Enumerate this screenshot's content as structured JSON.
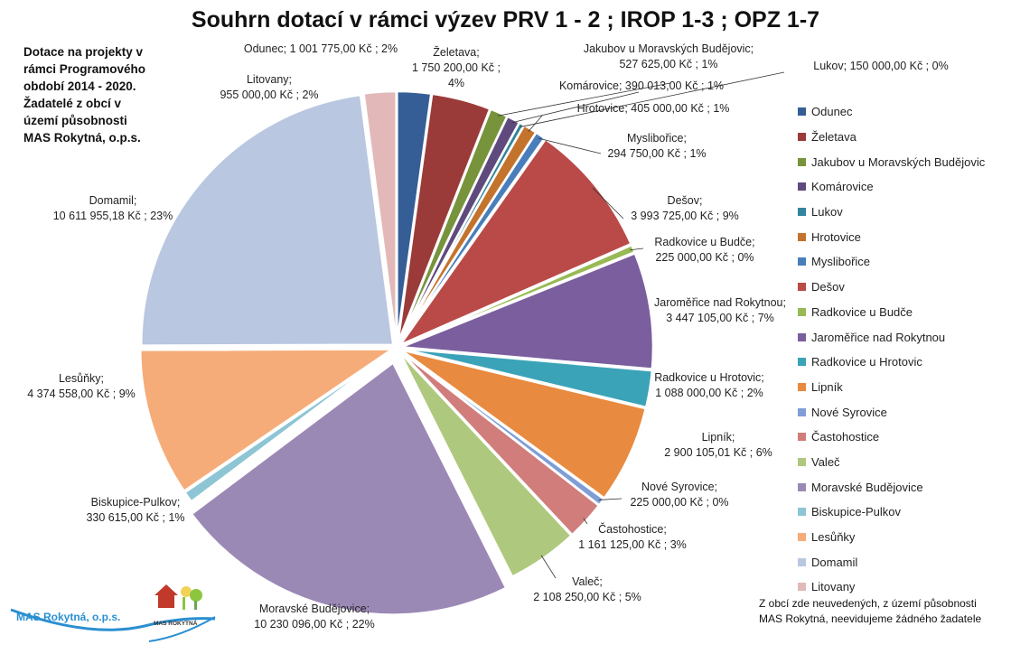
{
  "chart_data": {
    "type": "pie",
    "title": "Souhrn dotací v rámci výzev PRV 1 - 2 ; IROP 1-3 ; OPZ 1-7",
    "slices": [
      {
        "name": "Odunec",
        "value": 1001775.0,
        "label": "Odunec;  1 001 775,00 Kč ; 2%",
        "color": "#355e96"
      },
      {
        "name": "Želetava",
        "value": 1750200.0,
        "label": "Želetava;\n1 750 200,00 Kč ;\n4%",
        "color": "#9b3b39"
      },
      {
        "name": "Jakubov u Moravských Budějovic",
        "value": 527625.0,
        "label": "Jakubov u Moravských Budějovic;\n527 625,00 Kč ; 1%",
        "color": "#77933c"
      },
      {
        "name": "Komárovice",
        "value": 390013.0,
        "label": "Komárovice;  390 013,00 Kč ; 1%",
        "color": "#5f4a7e"
      },
      {
        "name": "Lukov",
        "value": 150000.0,
        "label": "Lukov;  150 000,00 Kč ; 0%",
        "color": "#31859c"
      },
      {
        "name": "Hrotovice",
        "value": 405000.0,
        "label": "Hrotovice;  405 000,00 Kč ; 1%",
        "color": "#c4732c"
      },
      {
        "name": "Myslibořice",
        "value": 294750.0,
        "label": "Myslibořice;\n294 750,00 Kč ;  1%",
        "color": "#4a7ebb"
      },
      {
        "name": "Dešov",
        "value": 3993725.0,
        "label": "Dešov;\n3 993 725,00 Kč ; 9%",
        "color": "#b94a48"
      },
      {
        "name": "Radkovice u Budče",
        "value": 225000.0,
        "label": "Radkovice u Budče;\n225 000,00 Kč ; 0%",
        "color": "#98b954"
      },
      {
        "name": "Jaroměřice nad Rokytnou",
        "value": 3447105.0,
        "label": "Jaroměřice nad Rokytnou;\n3 447 105,00 Kč ; 7%",
        "color": "#7b5e9e"
      },
      {
        "name": "Radkovice u Hrotovic",
        "value": 1088000.0,
        "label": "Radkovice u Hrotovic;\n1 088 000,00 Kč ; 2%",
        "color": "#3ba3b8"
      },
      {
        "name": "Lipník",
        "value": 2900105.01,
        "label": "Lipník;\n2 900 105,01 Kč ; 6%",
        "color": "#e88a3f"
      },
      {
        "name": "Nové Syrovice",
        "value": 225000.0,
        "label": "Nové Syrovice;\n225 000,00 Kč ; 0%",
        "color": "#7f9ed6"
      },
      {
        "name": "Častohostice",
        "value": 1161125.0,
        "label": "Častohostice;\n1 161 125,00 Kč ; 3%",
        "color": "#d07d7c"
      },
      {
        "name": "Valeč",
        "value": 2108250.0,
        "label": "Valeč;\n2 108 250,00 Kč ; 5%",
        "color": "#aec97d"
      },
      {
        "name": "Moravské Budějovice",
        "value": 10230096.0,
        "label": "Moravské Budějovice;\n10 230 096,00 Kč ; 22%",
        "color": "#9b89b5"
      },
      {
        "name": "Biskupice-Pulkov",
        "value": 330615.0,
        "label": "Biskupice-Pulkov;\n330 615,00 Kč ; 1%",
        "color": "#8dc5d4"
      },
      {
        "name": "Lesůňky",
        "value": 4374558.0,
        "label": "Lesůňky;\n4 374 558,00 Kč ; 9%",
        "color": "#f6ac78"
      },
      {
        "name": "Domamil",
        "value": 10611955.18,
        "label": "Domamil;\n10 611 955,18 Kč ; 23%",
        "color": "#b9c7e0"
      },
      {
        "name": "Litovany",
        "value": 955000.0,
        "label": "Litovany;\n955 000,00 Kč ; 2%",
        "color": "#e2b9b8"
      }
    ],
    "legend_position": "right"
  },
  "side_note": "Dotace na projekty v\nrámci Programového\nobdobí 2014 - 2020.\nŽadatelé z obcí v\núzemí působnosti\nMAS Rokytná, o.p.s.",
  "footnote": "Z obcí zde neuvedených, z území působnosti\nMAS Rokytná, neevidujeme žádného žadatele",
  "logo": {
    "text": "MAS Rokytná, o.p.s.",
    "sub": "MAS ROKYTNÁ"
  }
}
